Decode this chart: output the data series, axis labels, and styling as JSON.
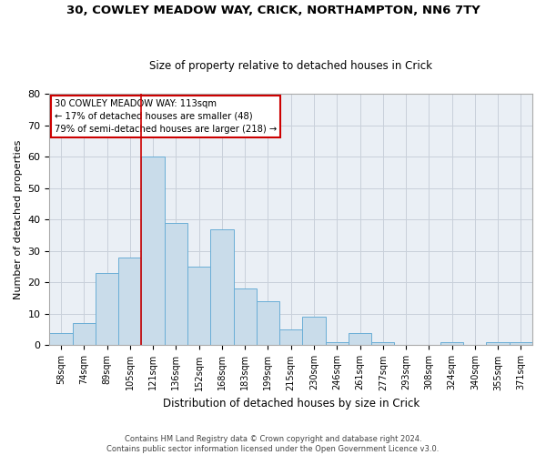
{
  "title1": "30, COWLEY MEADOW WAY, CRICK, NORTHAMPTON, NN6 7TY",
  "title2": "Size of property relative to detached houses in Crick",
  "xlabel": "Distribution of detached houses by size in Crick",
  "ylabel": "Number of detached properties",
  "bar_labels": [
    "58sqm",
    "74sqm",
    "89sqm",
    "105sqm",
    "121sqm",
    "136sqm",
    "152sqm",
    "168sqm",
    "183sqm",
    "199sqm",
    "215sqm",
    "230sqm",
    "246sqm",
    "261sqm",
    "277sqm",
    "293sqm",
    "308sqm",
    "324sqm",
    "340sqm",
    "355sqm",
    "371sqm"
  ],
  "bar_values": [
    4,
    7,
    23,
    28,
    60,
    39,
    25,
    37,
    18,
    14,
    5,
    9,
    1,
    4,
    1,
    0,
    0,
    1,
    0,
    1,
    1
  ],
  "bar_color": "#c9dcea",
  "bar_edge_color": "#6aaed6",
  "grid_color": "#c8d0da",
  "bg_color": "#eaeff5",
  "vline_x": 3.5,
  "vline_color": "#cc0000",
  "annotation_text": "30 COWLEY MEADOW WAY: 113sqm\n← 17% of detached houses are smaller (48)\n79% of semi-detached houses are larger (218) →",
  "annotation_box_color": "#cc0000",
  "ylim": [
    0,
    80
  ],
  "yticks": [
    0,
    10,
    20,
    30,
    40,
    50,
    60,
    70,
    80
  ],
  "footer1": "Contains HM Land Registry data © Crown copyright and database right 2024.",
  "footer2": "Contains public sector information licensed under the Open Government Licence v3.0."
}
